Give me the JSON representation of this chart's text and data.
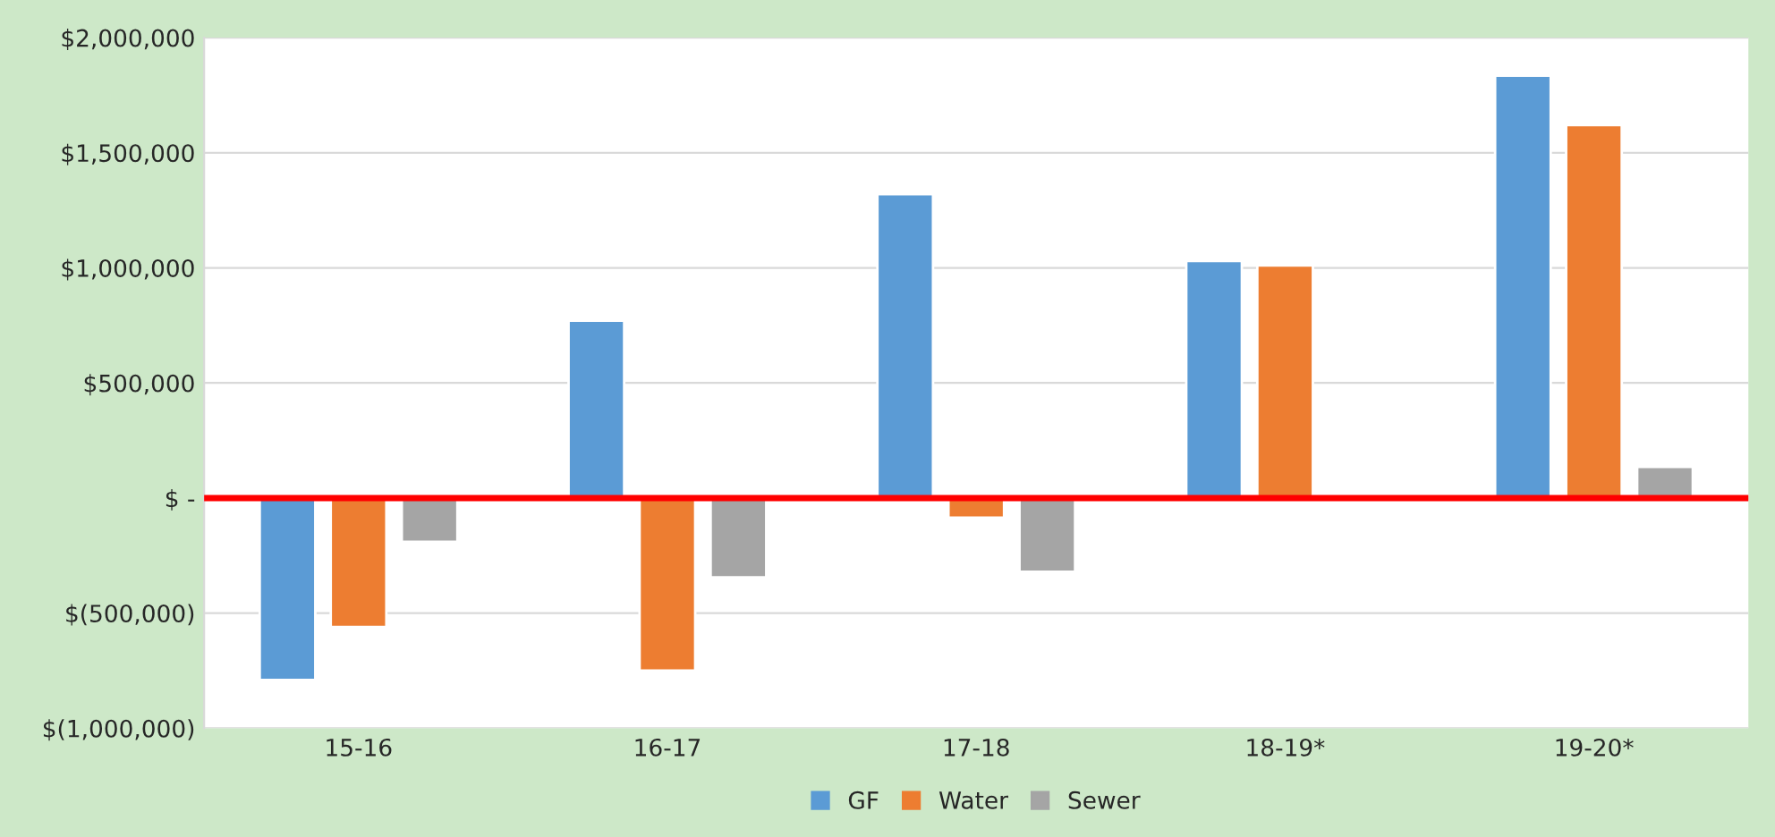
{
  "chart_data": {
    "type": "bar",
    "categories": [
      "15-16",
      "16-17",
      "17-18",
      "18-19*",
      "19-20*"
    ],
    "series": [
      {
        "name": "GF",
        "color": "#5b9bd5",
        "values": [
          -790000,
          770000,
          1320000,
          1030000,
          1835000
        ]
      },
      {
        "name": "Water",
        "color": "#ed7d31",
        "values": [
          -560000,
          -750000,
          -85000,
          1010000,
          1620000
        ]
      },
      {
        "name": "Sewer",
        "color": "#a5a5a5",
        "values": [
          -190000,
          -345000,
          -320000,
          null,
          135000
        ]
      }
    ],
    "ylim": [
      -1000000,
      2000000
    ],
    "yticks": [
      {
        "value": -1000000,
        "label": "$(1,000,000)"
      },
      {
        "value": -500000,
        "label": "$(500,000)"
      },
      {
        "value": 0,
        "label": "$ -"
      },
      {
        "value": 500000,
        "label": "$500,000"
      },
      {
        "value": 1000000,
        "label": "$1,000,000"
      },
      {
        "value": 1500000,
        "label": "$1,500,000"
      },
      {
        "value": 2000000,
        "label": "$2,000,000"
      }
    ],
    "ref_lines": [
      {
        "axis": "y",
        "value": 0,
        "color": "#ff0000"
      }
    ],
    "grid": "y",
    "legend": "bottom"
  }
}
